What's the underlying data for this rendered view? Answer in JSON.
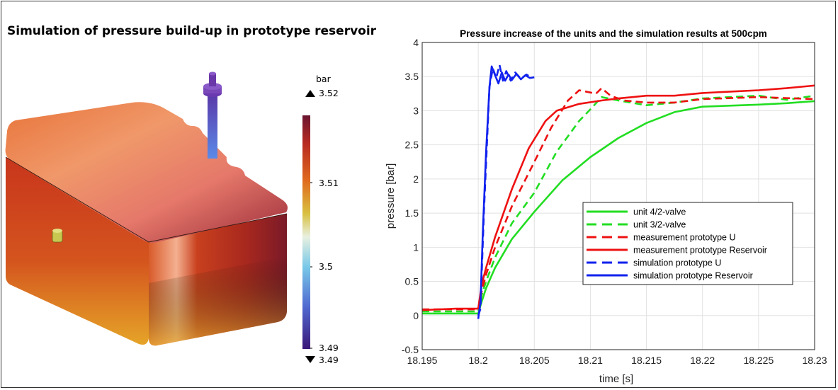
{
  "simulation": {
    "title": "Simulation of pressure build-up in prototype reservoir",
    "colorbar": {
      "unit": "bar",
      "max_label": "3.52",
      "min_label": "3.49",
      "ticks": [
        "3.51",
        "3.5",
        "3.49"
      ]
    }
  },
  "chart_data": {
    "type": "line",
    "title": "Pressure increase of the units and the simulation results at 500cpm",
    "xlabel": "time [s]",
    "ylabel": "pressure [bar]",
    "xlim": [
      18.195,
      18.23
    ],
    "ylim": [
      -0.5,
      4
    ],
    "x_ticks": [
      "18.195",
      "18.2",
      "18.205",
      "18.21",
      "18.215",
      "18.22",
      "18.225",
      "18.23"
    ],
    "y_ticks": [
      "-0.5",
      "0",
      "0.5",
      "1",
      "1.5",
      "2",
      "2.5",
      "3",
      "3.5",
      "4"
    ],
    "grid": true,
    "legend_position": "center-right",
    "series": [
      {
        "name": "unit 4/2-valve",
        "color": "#22dd22",
        "dash": "solid",
        "points": [
          [
            18.195,
            0.03
          ],
          [
            18.198,
            0.03
          ],
          [
            18.2,
            0.03
          ],
          [
            18.2003,
            0.2
          ],
          [
            18.2007,
            0.4
          ],
          [
            18.2015,
            0.7
          ],
          [
            18.203,
            1.12
          ],
          [
            18.205,
            1.52
          ],
          [
            18.2075,
            1.98
          ],
          [
            18.21,
            2.32
          ],
          [
            18.2125,
            2.6
          ],
          [
            18.215,
            2.82
          ],
          [
            18.2175,
            2.98
          ],
          [
            18.22,
            3.06
          ],
          [
            18.225,
            3.09
          ],
          [
            18.2275,
            3.11
          ],
          [
            18.23,
            3.14
          ]
        ]
      },
      {
        "name": "unit 3/2-valve",
        "color": "#22dd22",
        "dash": "dashed",
        "points": [
          [
            18.195,
            0.06
          ],
          [
            18.198,
            0.06
          ],
          [
            18.2,
            0.06
          ],
          [
            18.2003,
            0.3
          ],
          [
            18.2007,
            0.5
          ],
          [
            18.2015,
            0.85
          ],
          [
            18.203,
            1.35
          ],
          [
            18.205,
            1.8
          ],
          [
            18.207,
            2.4
          ],
          [
            18.209,
            2.85
          ],
          [
            18.21,
            3.02
          ],
          [
            18.211,
            3.2
          ],
          [
            18.2125,
            3.15
          ],
          [
            18.215,
            3.08
          ],
          [
            18.2175,
            3.12
          ],
          [
            18.22,
            3.18
          ],
          [
            18.225,
            3.22
          ],
          [
            18.2275,
            3.16
          ],
          [
            18.23,
            3.22
          ]
        ]
      },
      {
        "name": "measurement prototype U",
        "color": "#ee1111",
        "dash": "dashed",
        "points": [
          [
            18.195,
            0.09
          ],
          [
            18.198,
            0.09
          ],
          [
            18.2,
            0.09
          ],
          [
            18.2003,
            0.35
          ],
          [
            18.2007,
            0.6
          ],
          [
            18.2015,
            1.0
          ],
          [
            18.203,
            1.6
          ],
          [
            18.205,
            2.25
          ],
          [
            18.2065,
            2.75
          ],
          [
            18.208,
            3.15
          ],
          [
            18.209,
            3.3
          ],
          [
            18.2105,
            3.25
          ],
          [
            18.211,
            3.33
          ],
          [
            18.2118,
            3.22
          ],
          [
            18.213,
            3.15
          ],
          [
            18.215,
            3.12
          ],
          [
            18.2175,
            3.12
          ],
          [
            18.22,
            3.17
          ],
          [
            18.225,
            3.2
          ],
          [
            18.23,
            3.17
          ]
        ]
      },
      {
        "name": "measurement prototype Reservoir",
        "color": "#ee1111",
        "dash": "solid",
        "points": [
          [
            18.195,
            0.08
          ],
          [
            18.198,
            0.1
          ],
          [
            18.2,
            0.1
          ],
          [
            18.2003,
            0.45
          ],
          [
            18.2007,
            0.7
          ],
          [
            18.2015,
            1.15
          ],
          [
            18.203,
            1.85
          ],
          [
            18.2045,
            2.45
          ],
          [
            18.206,
            2.85
          ],
          [
            18.207,
            3.0
          ],
          [
            18.209,
            3.1
          ],
          [
            18.211,
            3.15
          ],
          [
            18.2125,
            3.18
          ],
          [
            18.215,
            3.22
          ],
          [
            18.2175,
            3.22
          ],
          [
            18.22,
            3.26
          ],
          [
            18.2225,
            3.28
          ],
          [
            18.225,
            3.3
          ],
          [
            18.2275,
            3.33
          ],
          [
            18.23,
            3.37
          ]
        ]
      },
      {
        "name": "simulation prototype U",
        "color": "#1122ee",
        "dash": "dashed",
        "points": [
          [
            18.2,
            0.0
          ],
          [
            18.2002,
            0.1
          ],
          [
            18.2005,
            1.5
          ],
          [
            18.2008,
            2.6
          ],
          [
            18.201,
            3.35
          ],
          [
            18.2013,
            3.62
          ],
          [
            18.2016,
            3.48
          ],
          [
            18.2019,
            3.67
          ],
          [
            18.2022,
            3.44
          ],
          [
            18.2025,
            3.58
          ],
          [
            18.2029,
            3.44
          ],
          [
            18.2033,
            3.56
          ],
          [
            18.2038,
            3.47
          ],
          [
            18.2043,
            3.53
          ],
          [
            18.2048,
            3.48
          ]
        ]
      },
      {
        "name": "simulation prototype Reservoir",
        "color": "#1122ee",
        "dash": "solid",
        "points": [
          [
            18.2,
            -0.05
          ],
          [
            18.2002,
            0.2
          ],
          [
            18.2004,
            1.2
          ],
          [
            18.2007,
            2.4
          ],
          [
            18.201,
            3.35
          ],
          [
            18.2012,
            3.65
          ],
          [
            18.2015,
            3.52
          ],
          [
            18.2018,
            3.4
          ],
          [
            18.2021,
            3.56
          ],
          [
            18.2024,
            3.44
          ],
          [
            18.2027,
            3.53
          ],
          [
            18.203,
            3.45
          ],
          [
            18.2034,
            3.54
          ],
          [
            18.2038,
            3.46
          ],
          [
            18.2042,
            3.52
          ],
          [
            18.2046,
            3.48
          ],
          [
            18.205,
            3.49
          ]
        ]
      }
    ]
  }
}
